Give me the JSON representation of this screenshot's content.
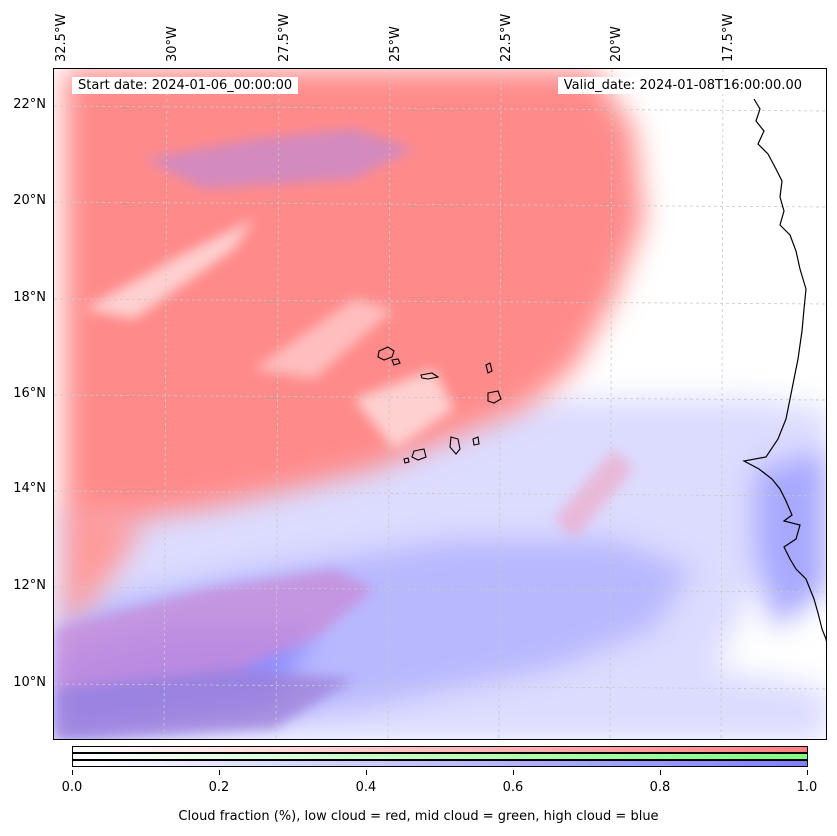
{
  "map": {
    "start_date": "Start date: 2024-01-06_00:00:00",
    "valid_date": "Valid_date: 2024-01-08T16:00:00.00",
    "lon_ticks": [
      "32.5°W",
      "30°W",
      "27.5°W",
      "25°W",
      "22.5°W",
      "20°W",
      "17.5°W"
    ],
    "lat_ticks": [
      "22°N",
      "20°N",
      "18°N",
      "16°N",
      "14°N",
      "12°N",
      "10°N"
    ],
    "colors": {
      "low": "#ff7f7f",
      "mid": "#7fff7f",
      "high": "#7f7fff"
    }
  },
  "colorbar": {
    "tick_labels": [
      "0.0",
      "0.2",
      "0.4",
      "0.6",
      "0.8",
      "1.0"
    ],
    "caption": "Cloud fraction (%), low cloud = red, mid cloud = green, high cloud = blue"
  }
}
